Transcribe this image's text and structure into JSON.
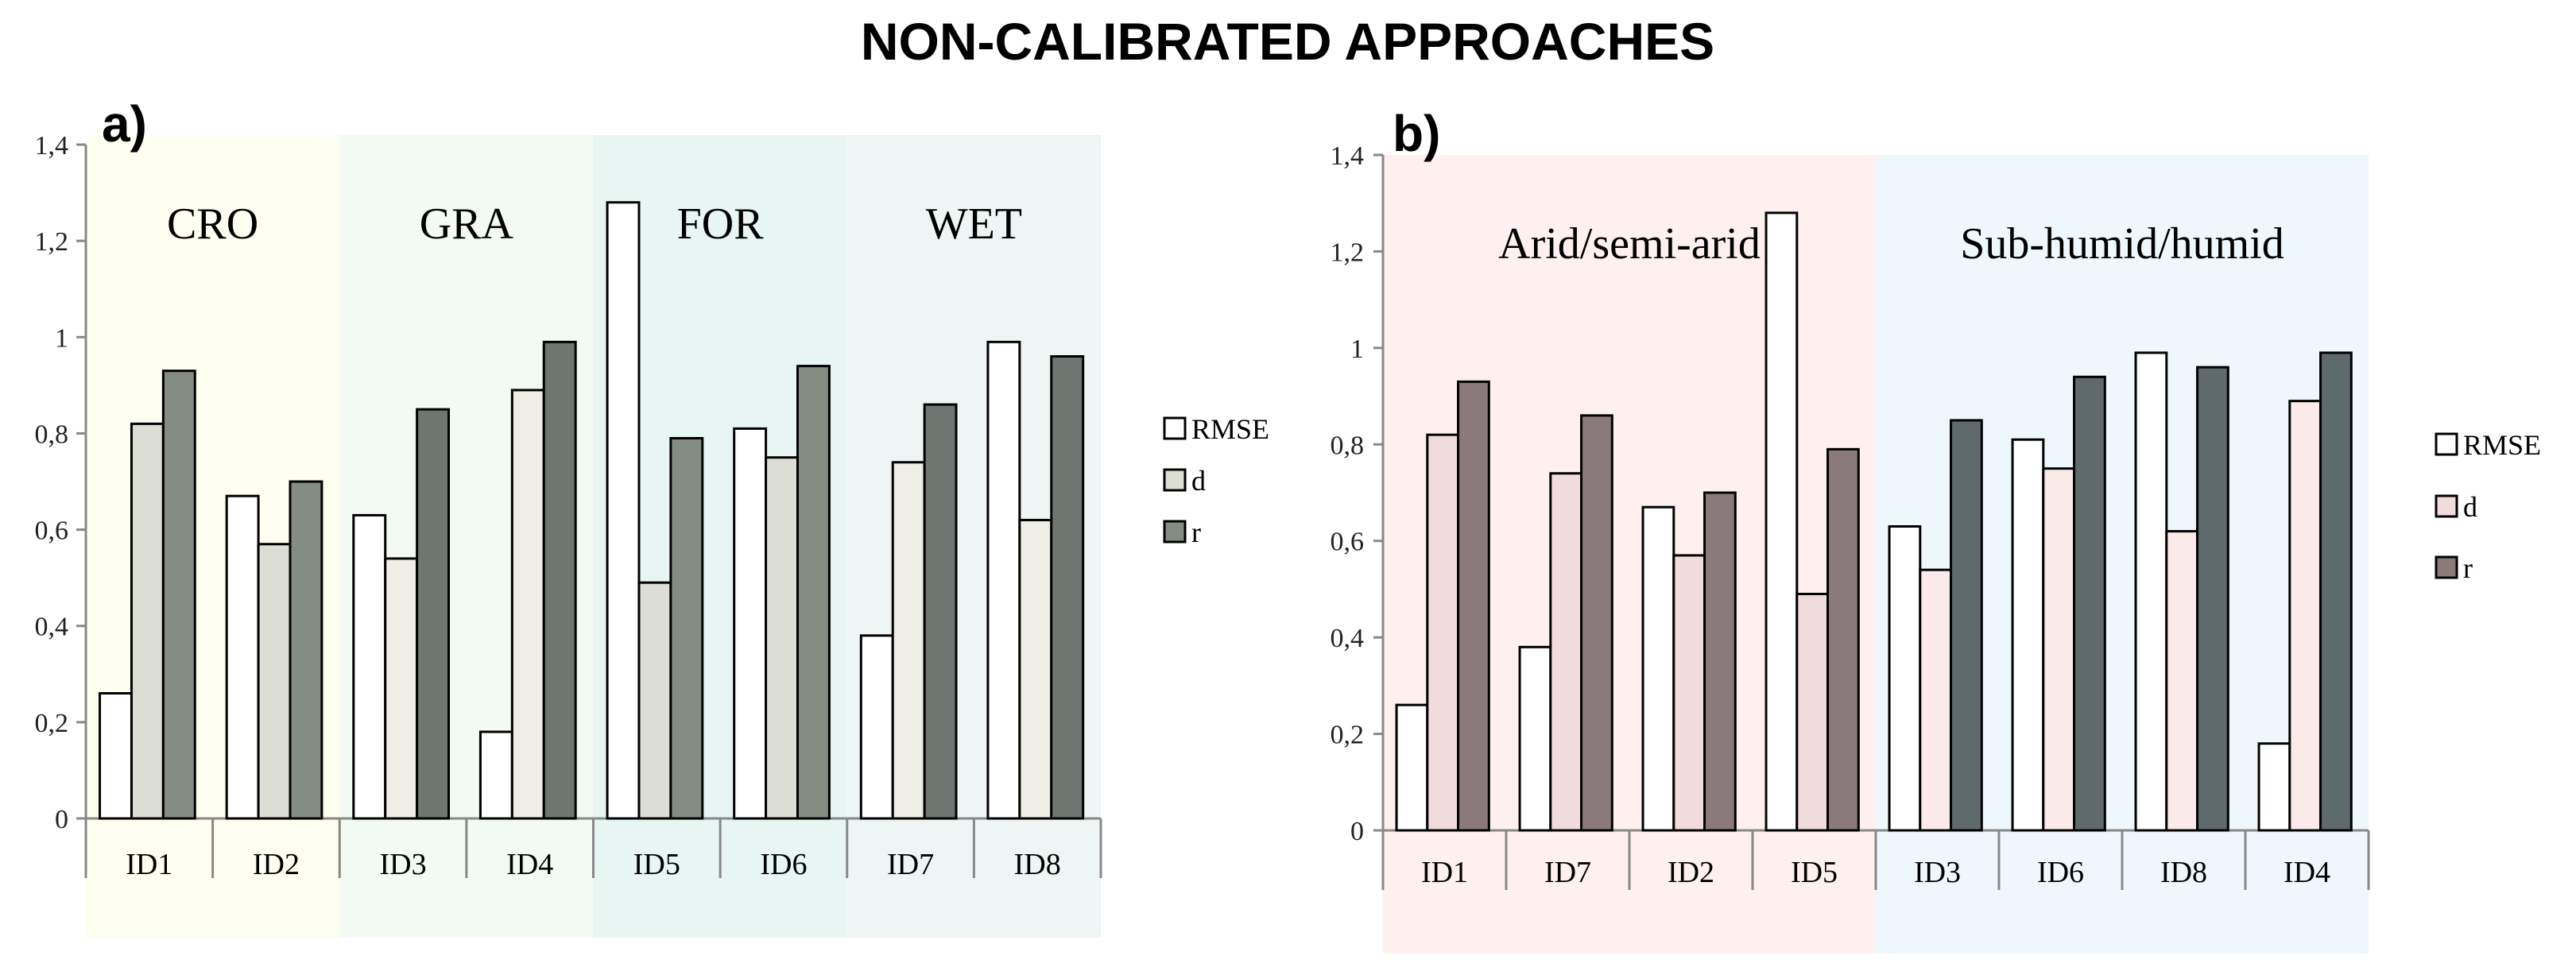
{
  "figure_title": "NON-CALIBRATED APPROACHES",
  "chart_data": [
    {
      "type": "bar",
      "panel_label": "a)",
      "categories": [
        "ID1",
        "ID2",
        "ID3",
        "ID4",
        "ID5",
        "ID6",
        "ID7",
        "ID8"
      ],
      "series": [
        {
          "name": "RMSE",
          "values": [
            0.26,
            0.67,
            0.63,
            0.18,
            1.28,
            0.81,
            0.38,
            0.99
          ]
        },
        {
          "name": "d",
          "values": [
            0.82,
            0.57,
            0.54,
            0.89,
            0.49,
            0.75,
            0.74,
            0.62
          ]
        },
        {
          "name": "r",
          "values": [
            0.93,
            0.7,
            0.85,
            0.99,
            0.79,
            0.94,
            0.86,
            0.96
          ]
        }
      ],
      "ylim": [
        0,
        1.4
      ],
      "yticks": [
        "0",
        "0,2",
        "0,4",
        "0,6",
        "0,8",
        "1",
        "1,2",
        "1,4"
      ],
      "groups": [
        {
          "label": "CRO",
          "categories": [
            "ID1",
            "ID2"
          ],
          "color": "#fefef0"
        },
        {
          "label": "GRA",
          "categories": [
            "ID3",
            "ID4"
          ],
          "color": "#f2faf3"
        },
        {
          "label": "FOR",
          "categories": [
            "ID5",
            "ID6"
          ],
          "color": "#e7f6f3"
        },
        {
          "label": "WET",
          "categories": [
            "ID7",
            "ID8"
          ],
          "color": "#eef5f4"
        }
      ],
      "legend": [
        "RMSE",
        "d",
        "r"
      ],
      "legend_position": "right",
      "grid": false
    },
    {
      "type": "bar",
      "panel_label": "b)",
      "categories": [
        "ID1",
        "ID7",
        "ID2",
        "ID5",
        "ID3",
        "ID6",
        "ID8",
        "ID4"
      ],
      "series": [
        {
          "name": "RMSE",
          "values": [
            0.26,
            0.38,
            0.67,
            1.28,
            0.63,
            0.81,
            0.99,
            0.18
          ]
        },
        {
          "name": "d",
          "values": [
            0.82,
            0.74,
            0.57,
            0.49,
            0.54,
            0.75,
            0.62,
            0.89
          ]
        },
        {
          "name": "r",
          "values": [
            0.93,
            0.86,
            0.7,
            0.79,
            0.85,
            0.94,
            0.96,
            0.99
          ]
        }
      ],
      "ylim": [
        0,
        1.4
      ],
      "yticks": [
        "0",
        "0,2",
        "0,4",
        "0,6",
        "0,8",
        "1",
        "1,2",
        "1,4"
      ],
      "groups": [
        {
          "label": "Arid/semi-arid",
          "categories": [
            "ID1",
            "ID7",
            "ID2",
            "ID5"
          ],
          "color": "#fdf0ef"
        },
        {
          "label": "Sub-humid/humid",
          "categories": [
            "ID3",
            "ID6",
            "ID8",
            "ID4"
          ],
          "color": "#eef8fc"
        }
      ],
      "legend": [
        "RMSE",
        "d",
        "r"
      ],
      "legend_position": "right",
      "grid": false
    }
  ]
}
